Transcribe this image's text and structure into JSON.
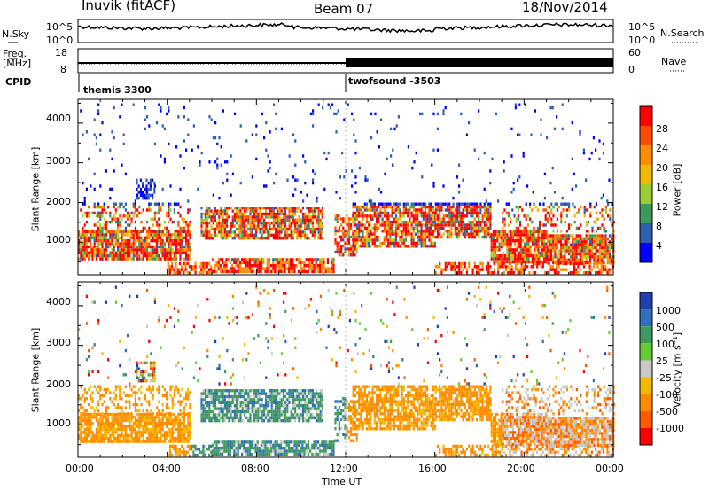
{
  "header": {
    "station": "Inuvik (fitACF)",
    "beam": "Beam 07",
    "date": "18/Nov/2014"
  },
  "top_panels": {
    "nsky_label": "N.Sky",
    "nsky_ticks": [
      "10^5",
      "10^0"
    ],
    "nsearch_label": "N.Search",
    "nsearch_ticks": [
      "10^5",
      "10^0"
    ],
    "freq_label_1": "Freq.",
    "freq_label_2": "[MHz]",
    "freq_ticks": [
      "18",
      "8"
    ],
    "nave_label": "Nave",
    "nave_ticks": [
      "60",
      "0"
    ],
    "cpid_label": "CPID",
    "cpid_segments": [
      {
        "label": "themis 3300",
        "start_hour": 0
      },
      {
        "label": "twofsound -3503",
        "start_hour": 12
      }
    ]
  },
  "chart_data": [
    {
      "type": "heatmap",
      "name": "power",
      "ylabel": "Slant Range [km]",
      "xlabel": "",
      "x_range_hours": [
        0,
        24
      ],
      "ylim": [
        180,
        4600
      ],
      "yticks": [
        "1000",
        "2000",
        "3000",
        "4000"
      ],
      "colorbar_label": "Power [dB]",
      "colorbar_ticks": [
        "28",
        "24",
        "20",
        "16",
        "12",
        "8",
        "4"
      ],
      "colorbar_colors": [
        "#ff0000",
        "#ff4d00",
        "#ff8c00",
        "#f5b800",
        "#9acd32",
        "#3d9b5a",
        "#2f5fb0",
        "#0000ff"
      ]
    },
    {
      "type": "heatmap",
      "name": "velocity",
      "ylabel": "Slant Range [km]",
      "xlabel": "Time UT",
      "x_range_hours": [
        0,
        24
      ],
      "xticks": [
        "00:00",
        "04:00",
        "08:00",
        "12:00",
        "16:00",
        "20:00",
        "00:00"
      ],
      "ylim": [
        180,
        4600
      ],
      "yticks": [
        "1000",
        "2000",
        "3000",
        "4000"
      ],
      "colorbar_label": "Velocity [m s⁻¹]",
      "colorbar_ticks": [
        "1000",
        "500",
        "100",
        "25",
        "-25",
        "-100",
        "-500",
        "-1000"
      ],
      "colorbar_colors": [
        "#2040b0",
        "#3070b8",
        "#3f9a5e",
        "#66cc33",
        "#c8c8c8",
        "#f5b800",
        "#ff8c00",
        "#ff5a00",
        "#ff0000"
      ]
    }
  ]
}
